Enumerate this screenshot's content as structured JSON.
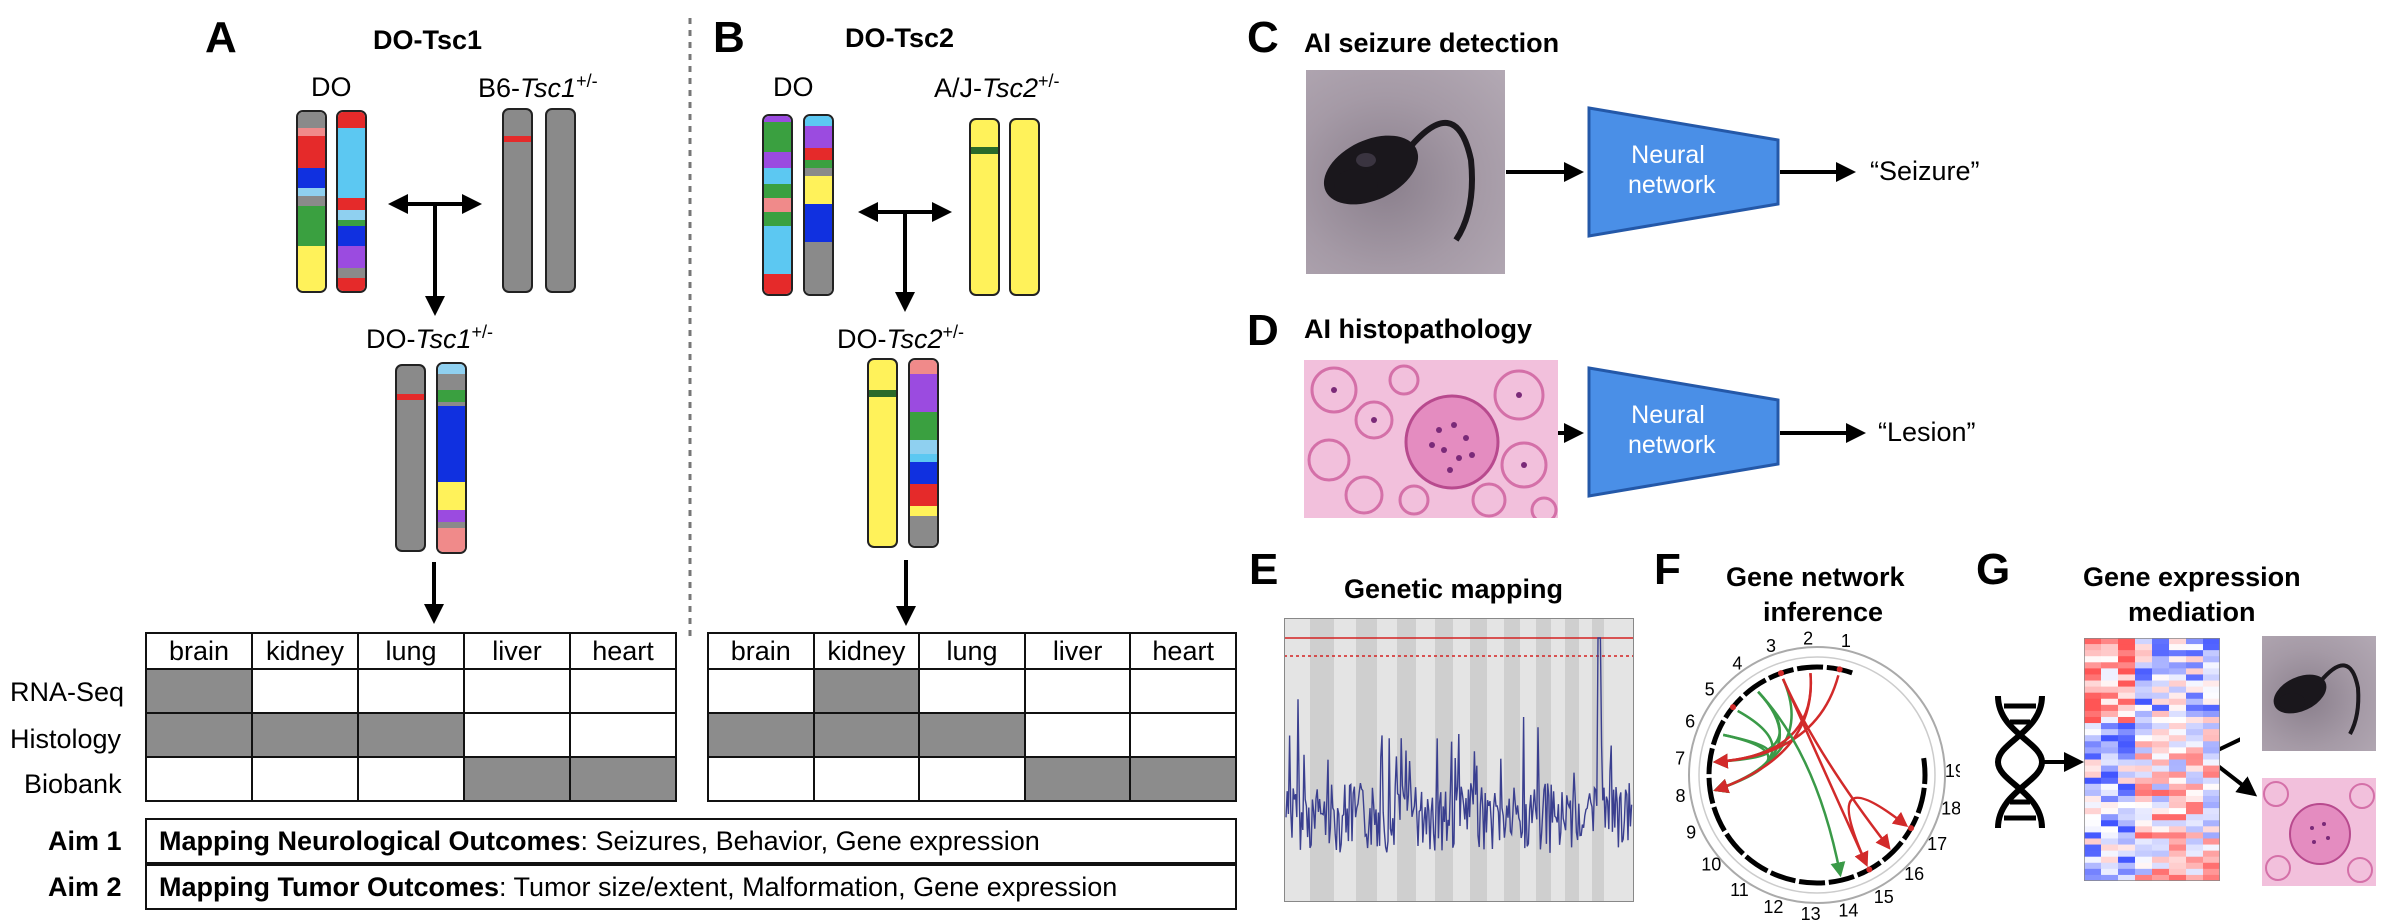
{
  "panels": {
    "A": {
      "letter": "A",
      "title": "DO-Tsc1",
      "parent1": "DO",
      "parent2_prefix": "B6-",
      "parent2_gene": "Tsc1",
      "parent2_sup": "+/-",
      "offspring_prefix": "DO-",
      "offspring_gene": "Tsc1",
      "offspring_sup": "+/-"
    },
    "B": {
      "letter": "B",
      "title": "DO-Tsc2",
      "parent1": "DO",
      "parent2_prefix": "A/J-",
      "parent2_gene": "Tsc2",
      "parent2_sup": "+/-",
      "offspring_prefix": "DO-",
      "offspring_gene": "Tsc2",
      "offspring_sup": "+/-"
    },
    "C": {
      "letter": "C",
      "title": "AI seizure detection",
      "network": "Neural network",
      "output": "“Seizure”"
    },
    "D": {
      "letter": "D",
      "title": "AI histopathology",
      "network": "Neural network",
      "output": "“Lesion”"
    },
    "E": {
      "letter": "E",
      "title": "Genetic mapping"
    },
    "F": {
      "letter": "F",
      "title_line1": "Gene network",
      "title_line2": "inference",
      "chromosomes": [
        "1",
        "2",
        "3",
        "4",
        "5",
        "6",
        "7",
        "8",
        "9",
        "10",
        "11",
        "12",
        "13",
        "14",
        "15",
        "16",
        "17",
        "18",
        "19"
      ]
    },
    "G": {
      "letter": "G",
      "title_line1": "Gene expression",
      "title_line2": "mediation"
    }
  },
  "tissue_table": {
    "columns": [
      "brain",
      "kidney",
      "lung",
      "liver",
      "heart"
    ],
    "rows": [
      "RNA-Seq",
      "Histology",
      "Biobank"
    ],
    "A_filled": [
      [
        1,
        0,
        0,
        0,
        0
      ],
      [
        1,
        1,
        1,
        0,
        0
      ],
      [
        0,
        0,
        0,
        1,
        1
      ]
    ],
    "B_filled": [
      [
        0,
        1,
        0,
        0,
        0
      ],
      [
        1,
        1,
        1,
        0,
        0
      ],
      [
        0,
        0,
        0,
        1,
        1
      ]
    ]
  },
  "aims": [
    {
      "label": "Aim 1",
      "bold": "Mapping Neurological Outcomes",
      "rest": ": Seizures, Behavior, Gene expression"
    },
    {
      "label": "Aim 2",
      "bold": "Mapping Tumor Outcomes",
      "rest": ": Tumor size/extent, Malformation, Gene expression"
    }
  ],
  "colors": {
    "network_fill": "#4a8fe7",
    "network_stroke": "#2458a8",
    "gray_cell": "#8c8c8c",
    "chrom_gray": "#8a8a8a",
    "chrom_yellow": "#fff25a",
    "lod_line": "#3a3f8f",
    "green_link": "#3a9a48",
    "red_link": "#d22a2a"
  }
}
